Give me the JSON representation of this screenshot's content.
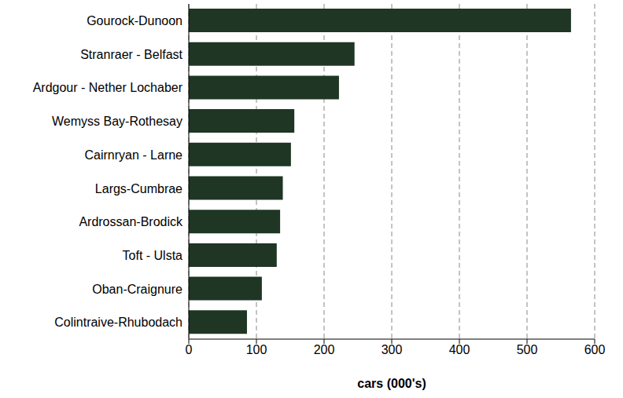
{
  "chart_data": {
    "type": "bar",
    "orientation": "horizontal",
    "categories": [
      "Gourock-Dunoon",
      "Stranraer - Belfast",
      "Ardgour - Nether Lochaber",
      "Wemyss Bay-Rothesay",
      "Cairnryan - Larne",
      "Largs-Cumbrae",
      "Ardrossan-Brodick",
      "Toft - Ulsta",
      "Oban-Craignure",
      "Colintraive-Rhubodach"
    ],
    "values": [
      565,
      245,
      222,
      156,
      151,
      139,
      135,
      130,
      108,
      86
    ],
    "color": "#1e3623",
    "x_label": "cars (000's)",
    "xlim": [
      0,
      600
    ],
    "xticks": [
      0,
      100,
      200,
      300,
      400,
      500,
      600
    ],
    "grid": true
  }
}
